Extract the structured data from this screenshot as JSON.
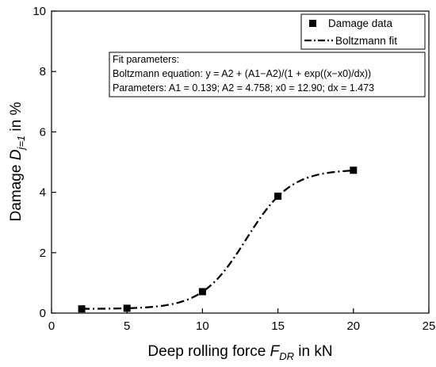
{
  "chart_data": {
    "type": "scatter",
    "xlabel": {
      "prefix": "Deep rolling force ",
      "symbol": "F",
      "subscript": "DR",
      "suffix": " in kN"
    },
    "ylabel": {
      "prefix": "Damage ",
      "symbol": "D",
      "subscript": "j=1",
      "suffix": " in %"
    },
    "xlim": [
      0,
      25
    ],
    "ylim": [
      0,
      10
    ],
    "xticks": [
      0,
      5,
      10,
      15,
      20,
      25
    ],
    "yticks": [
      0,
      2,
      4,
      6,
      8,
      10
    ],
    "grid": false,
    "legend_position": "top-right",
    "series": [
      {
        "name": "Damage data",
        "kind": "scatter",
        "marker": "square",
        "color": "#000000",
        "x": [
          2,
          5,
          10,
          15,
          20
        ],
        "y": [
          0.14,
          0.16,
          0.71,
          3.87,
          4.73
        ]
      },
      {
        "name": "Boltzmann fit",
        "kind": "line",
        "line_style": "dash-dot",
        "color": "#000000",
        "model": "boltzmann",
        "params": {
          "A1": 0.139,
          "A2": 4.758,
          "x0": 12.9,
          "dx": 1.473
        },
        "x_range": [
          2,
          20
        ]
      }
    ],
    "annotation": {
      "title": "Fit parameters:",
      "equation": "Boltzmann equation: y = A2 + (A1−A2)/(1 + exp((x−x0)/dx))",
      "parameters": "Parameters: A1 = 0.139; A2 = 4.758; x0 = 12.90; dx = 1.473"
    }
  }
}
